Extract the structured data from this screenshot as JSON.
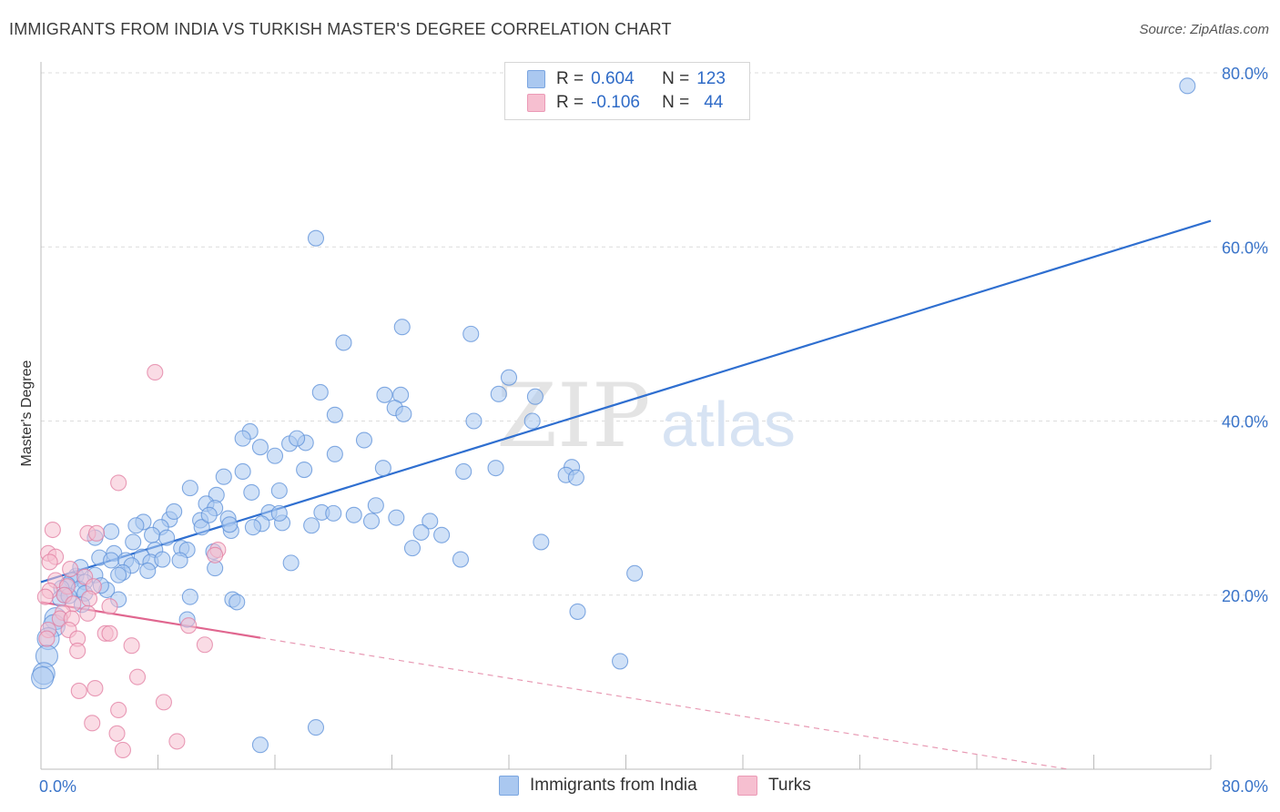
{
  "header": {
    "title": "IMMIGRANTS FROM INDIA VS TURKISH MASTER'S DEGREE CORRELATION CHART",
    "source": "Source: ZipAtlas.com"
  },
  "legend_top": {
    "rows": [
      {
        "r_label": "R =",
        "r_value": "0.604",
        "n_label": "N =",
        "n_value": "123",
        "color": "#aac8f0"
      },
      {
        "r_label": "R =",
        "r_value": "-0.106",
        "n_label": "N =",
        "n_value": "44",
        "color": "#f6bfd0"
      }
    ]
  },
  "legend_bottom": {
    "items": [
      {
        "label": "Immigrants from India",
        "color": "#aac8f0"
      },
      {
        "label": "Turks",
        "color": "#f6bfd0"
      }
    ]
  },
  "watermark": {
    "zip": "ZIP",
    "atlas": "atlas"
  },
  "chart_data": {
    "type": "scatter",
    "title": "IMMIGRANTS FROM INDIA VS TURKISH MASTER'S DEGREE CORRELATION CHART",
    "xlabel": "",
    "ylabel": "Master's Degree",
    "xlim": [
      0,
      80
    ],
    "ylim": [
      0,
      80
    ],
    "x_tick_labels": [
      "0.0%",
      "80.0%"
    ],
    "y_tick_labels": [
      "20.0%",
      "40.0%",
      "60.0%",
      "80.0%"
    ],
    "y_ticks": [
      20,
      40,
      60,
      80
    ],
    "x_ticks": [
      0,
      8,
      16,
      24,
      32,
      40,
      48,
      56,
      64,
      72,
      80
    ],
    "grid": true,
    "series": [
      {
        "name": "Immigrants from India",
        "color": "#5b8fd8",
        "fill": "#aac8f0",
        "r": 0.604,
        "n": 123,
        "trend": {
          "x0": 0,
          "y0": 21.5,
          "x1": 80,
          "y1": 63.0,
          "dashed_from": null
        },
        "points": [
          [
            78.4,
            78.5
          ],
          [
            18.8,
            61.0
          ],
          [
            24.7,
            50.8
          ],
          [
            29.4,
            50.0
          ],
          [
            20.7,
            49.0
          ],
          [
            32.0,
            45.0
          ],
          [
            31.3,
            43.1
          ],
          [
            19.1,
            43.3
          ],
          [
            23.5,
            43.0
          ],
          [
            24.6,
            43.0
          ],
          [
            33.8,
            42.8
          ],
          [
            24.2,
            41.5
          ],
          [
            24.8,
            40.8
          ],
          [
            20.1,
            40.7
          ],
          [
            29.6,
            40.0
          ],
          [
            33.6,
            40.0
          ],
          [
            14.3,
            38.8
          ],
          [
            13.8,
            38.0
          ],
          [
            15.0,
            37.0
          ],
          [
            17.0,
            37.4
          ],
          [
            18.1,
            37.5
          ],
          [
            22.1,
            37.8
          ],
          [
            20.1,
            36.2
          ],
          [
            16.0,
            36.0
          ],
          [
            23.4,
            34.6
          ],
          [
            31.1,
            34.6
          ],
          [
            36.3,
            34.7
          ],
          [
            18.0,
            34.4
          ],
          [
            13.8,
            34.2
          ],
          [
            28.9,
            34.2
          ],
          [
            35.9,
            33.8
          ],
          [
            36.6,
            33.5
          ],
          [
            12.5,
            33.6
          ],
          [
            10.2,
            32.3
          ],
          [
            16.3,
            32.0
          ],
          [
            14.4,
            31.8
          ],
          [
            12.0,
            31.5
          ],
          [
            11.3,
            30.5
          ],
          [
            22.9,
            30.3
          ],
          [
            11.9,
            30.0
          ],
          [
            19.2,
            29.5
          ],
          [
            15.6,
            29.5
          ],
          [
            21.4,
            29.2
          ],
          [
            12.8,
            28.8
          ],
          [
            8.8,
            28.7
          ],
          [
            10.9,
            28.6
          ],
          [
            22.6,
            28.5
          ],
          [
            15.1,
            28.2
          ],
          [
            16.5,
            28.3
          ],
          [
            26.6,
            28.5
          ],
          [
            7.0,
            28.4
          ],
          [
            6.5,
            28.0
          ],
          [
            18.5,
            28.0
          ],
          [
            11.0,
            27.8
          ],
          [
            13.0,
            27.4
          ],
          [
            8.2,
            27.8
          ],
          [
            4.8,
            27.3
          ],
          [
            7.6,
            26.9
          ],
          [
            8.6,
            26.6
          ],
          [
            27.4,
            26.9
          ],
          [
            34.2,
            26.1
          ],
          [
            9.6,
            25.4
          ],
          [
            10.0,
            25.2
          ],
          [
            7.8,
            25.2
          ],
          [
            11.8,
            25.0
          ],
          [
            25.4,
            25.4
          ],
          [
            5.0,
            24.8
          ],
          [
            6.9,
            24.4
          ],
          [
            4.0,
            24.3
          ],
          [
            4.8,
            24.0
          ],
          [
            5.8,
            24.0
          ],
          [
            9.5,
            24.0
          ],
          [
            7.5,
            23.8
          ],
          [
            28.7,
            24.1
          ],
          [
            17.1,
            23.7
          ],
          [
            6.2,
            23.4
          ],
          [
            11.9,
            23.1
          ],
          [
            5.6,
            22.6
          ],
          [
            3.7,
            22.3
          ],
          [
            2.4,
            22.2
          ],
          [
            2.1,
            21.7
          ],
          [
            3.0,
            21.5
          ],
          [
            40.6,
            22.5
          ],
          [
            1.8,
            21.2
          ],
          [
            1.4,
            20.8
          ],
          [
            2.6,
            20.7
          ],
          [
            4.5,
            20.6
          ],
          [
            3.0,
            20.2
          ],
          [
            1.6,
            20.0
          ],
          [
            1.3,
            19.6
          ],
          [
            10.2,
            19.8
          ],
          [
            13.1,
            19.5
          ],
          [
            5.3,
            19.5
          ],
          [
            13.4,
            19.2
          ],
          [
            36.7,
            18.1
          ],
          [
            10.0,
            17.2
          ],
          [
            1.0,
            17.3
          ],
          [
            0.9,
            16.5
          ],
          [
            0.5,
            15.0
          ],
          [
            0.4,
            13.0
          ],
          [
            39.6,
            12.4
          ],
          [
            0.2,
            11.0
          ],
          [
            0.1,
            10.5
          ],
          [
            18.8,
            4.8
          ],
          [
            15.0,
            2.8
          ],
          [
            11.5,
            29.2
          ],
          [
            9.1,
            29.6
          ],
          [
            26.0,
            27.2
          ],
          [
            7.3,
            22.8
          ],
          [
            8.3,
            24.1
          ],
          [
            5.3,
            22.3
          ],
          [
            16.3,
            29.4
          ],
          [
            20.0,
            29.4
          ],
          [
            14.5,
            27.8
          ],
          [
            12.9,
            28.1
          ],
          [
            24.3,
            28.9
          ],
          [
            3.7,
            26.6
          ],
          [
            17.5,
            38.0
          ],
          [
            6.3,
            26.1
          ],
          [
            2.7,
            23.2
          ],
          [
            4.1,
            21.1
          ],
          [
            1.9,
            19.9
          ],
          [
            2.8,
            18.9
          ]
        ]
      },
      {
        "name": "Turks",
        "color": "#e17ca0",
        "fill": "#f6bfd0",
        "r": -0.106,
        "n": 44,
        "trend": {
          "x0": 0,
          "y0": 19.2,
          "x1": 15,
          "y1": 15.1,
          "dashed_to": {
            "x": 80,
            "y": -2.7
          }
        },
        "points": [
          [
            7.8,
            45.6
          ],
          [
            5.3,
            32.9
          ],
          [
            0.8,
            27.5
          ],
          [
            3.2,
            27.1
          ],
          [
            3.8,
            27.1
          ],
          [
            0.5,
            24.8
          ],
          [
            1.0,
            24.4
          ],
          [
            12.1,
            25.2
          ],
          [
            11.9,
            24.6
          ],
          [
            0.6,
            23.8
          ],
          [
            2.0,
            23.0
          ],
          [
            3.0,
            22.1
          ],
          [
            1.0,
            21.7
          ],
          [
            1.8,
            21.0
          ],
          [
            3.6,
            21.0
          ],
          [
            0.6,
            20.5
          ],
          [
            1.6,
            20.0
          ],
          [
            3.3,
            19.6
          ],
          [
            2.2,
            19.0
          ],
          [
            4.7,
            18.7
          ],
          [
            1.5,
            18.0
          ],
          [
            3.2,
            17.9
          ],
          [
            1.3,
            17.3
          ],
          [
            2.1,
            17.3
          ],
          [
            10.1,
            16.5
          ],
          [
            0.5,
            16.0
          ],
          [
            1.9,
            16.0
          ],
          [
            4.4,
            15.6
          ],
          [
            4.7,
            15.6
          ],
          [
            2.5,
            15.0
          ],
          [
            11.2,
            14.3
          ],
          [
            6.2,
            14.2
          ],
          [
            2.5,
            13.6
          ],
          [
            6.6,
            10.6
          ],
          [
            3.7,
            9.3
          ],
          [
            2.6,
            9.0
          ],
          [
            8.4,
            7.7
          ],
          [
            5.3,
            6.8
          ],
          [
            3.5,
            5.3
          ],
          [
            5.2,
            4.1
          ],
          [
            9.3,
            3.2
          ],
          [
            5.6,
            2.2
          ],
          [
            0.3,
            19.8
          ],
          [
            0.4,
            15.0
          ]
        ]
      }
    ]
  }
}
